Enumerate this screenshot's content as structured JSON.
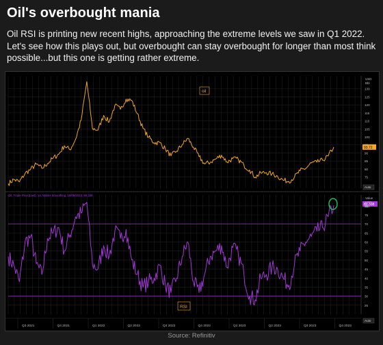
{
  "header": {
    "title": "Oil's overbought mania",
    "description": "Oil RSI is printing new recent highs, approaching the extreme levels we saw in Q1 2022. Let's see how this plays out, but overbought can stay overbought for longer than most think possible...but this one is getting rather extreme."
  },
  "footer": {
    "source": "Source: Refinitiv"
  },
  "colors": {
    "oil": "#f5a623",
    "rsi": "#a238d6",
    "rsi_band": "#7a2a9c",
    "highlight_circle": "#22c55e",
    "background": "#000000"
  },
  "chart_data": [
    {
      "type": "line",
      "series": [
        {
          "name": "oil",
          "values": [
            70.8,
            73.5,
            72,
            77.2,
            79.8,
            83,
            80.4,
            83.4,
            86.8,
            89.2,
            94.5,
            92,
            98.5,
            110.5,
            134.5,
            105.4,
            104.3,
            113.4,
            109.3,
            119.6,
            117.2,
            123.6,
            122.8,
            114.4,
            105.5,
            99.8,
            96.4,
            96.5,
            92.5,
            88.2,
            91.1,
            95.2,
            99.1,
            93.6,
            87.7,
            83.1,
            84.2,
            86.3,
            88.6,
            84.3,
            86.5,
            85.9,
            82.2,
            79.4,
            74.9,
            77.5,
            77.8,
            76.9,
            75.4,
            73,
            72.3,
            75,
            78.9,
            80.4,
            83.8,
            84.2,
            85.5,
            88.1,
            93.7
          ]
        }
      ],
      "y_ticks": [
        75,
        80,
        85,
        90,
        95,
        100,
        105,
        110,
        115,
        120,
        125,
        130
      ],
      "ylim": [
        68,
        138
      ],
      "x_quarter_labels": [
        "Q3 2021",
        "Q4 2021",
        "Q1 2022",
        "Q2 2022",
        "Q3 2022",
        "Q4 2022",
        "Q1 2023",
        "Q2 2023",
        "Q3 2023",
        "Q4 2023"
      ],
      "top_right_unit": [
        "USD",
        "Bbl"
      ],
      "last_price_label": "93.72",
      "in_plot_label": "oil",
      "scale_box_label": "Auto"
    },
    {
      "type": "line",
      "legend_text": "Oil, Trade Price(Last), 14, Wilder Smoothing, 18/09/2023, 80.338",
      "series": [
        {
          "name": "RSI",
          "values": [
            52,
            47,
            38,
            60,
            63,
            48,
            42,
            62,
            65,
            68,
            55,
            64,
            74,
            76,
            82,
            48,
            45,
            58,
            52,
            66,
            62,
            67,
            50,
            42,
            35,
            38,
            40,
            47,
            36,
            32,
            40,
            52,
            60,
            38,
            32,
            42,
            52,
            55,
            58,
            46,
            57,
            53,
            42,
            30,
            28,
            40,
            42,
            46,
            45,
            40,
            36,
            48,
            55,
            60,
            63,
            66,
            68,
            74,
            80.338
          ]
        }
      ],
      "y_ticks": [
        25,
        30,
        35,
        40,
        45,
        50,
        55,
        60,
        65,
        70,
        75,
        80
      ],
      "ylim": [
        20,
        86
      ],
      "bands": [
        30,
        70
      ],
      "top_right_unit": [
        "Value",
        "USD",
        "Bbl"
      ],
      "last_value_label": "80.338",
      "in_plot_label": "RSI",
      "scale_box_label": "Auto"
    }
  ]
}
